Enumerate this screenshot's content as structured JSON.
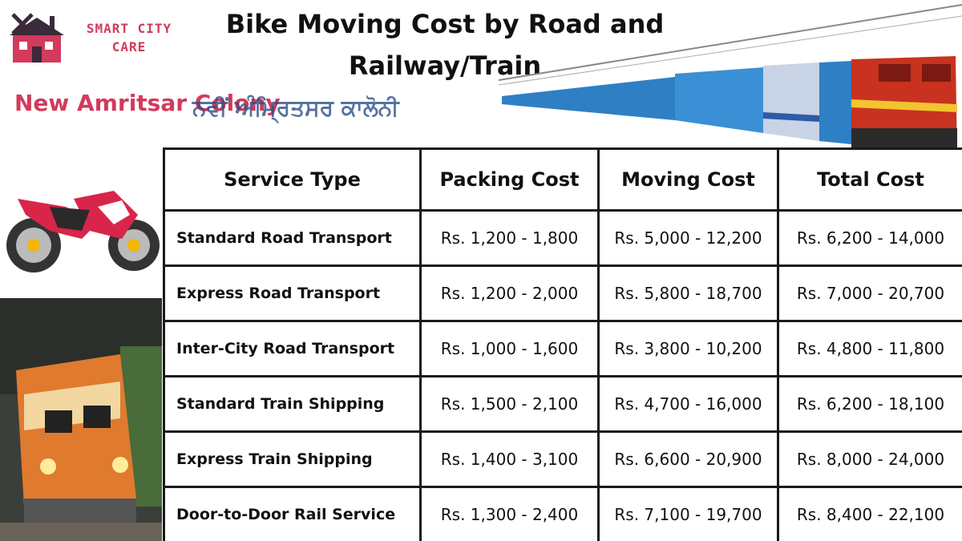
{
  "logo": {
    "line1": "SMART CITY",
    "line2": "CARE"
  },
  "title": {
    "line1": "Bike Moving Cost by Road and",
    "line2": "Railway/Train"
  },
  "location": {
    "english": "New Amritsar Colony",
    "punjabi": "ਨਵੀਂ ਅੰਮ੍ਰਿਤਸਰ ਕਾਲੋਨੀ"
  },
  "table": {
    "headers": [
      "Service Type",
      "Packing Cost",
      "Moving Cost",
      "Total Cost"
    ],
    "rows": [
      [
        "Standard Road Transport",
        "Rs. 1,200 - 1,800",
        "Rs. 5,000 - 12,200",
        "Rs. 6,200 - 14,000"
      ],
      [
        "Express Road Transport",
        "Rs. 1,200 - 2,000",
        "Rs. 5,800 - 18,700",
        "Rs. 7,000 - 20,700"
      ],
      [
        "Inter-City Road Transport",
        "Rs. 1,000 - 1,600",
        "Rs. 3,800 - 10,200",
        "Rs. 4,800 - 11,800"
      ],
      [
        "Standard Train Shipping",
        "Rs. 1,500 - 2,100",
        "Rs. 4,700 - 16,000",
        "Rs. 6,200 - 18,100"
      ],
      [
        "Express Train Shipping",
        "Rs. 1,400 - 3,100",
        "Rs. 6,600 - 20,900",
        "Rs. 8,000 - 24,000"
      ],
      [
        "Door-to-Door Rail Service",
        "Rs. 1,300 - 2,400",
        "Rs. 7,100 - 19,700",
        "Rs. 8,400 - 22,100"
      ]
    ]
  },
  "images": {
    "logo_icon": "house-tools-icon",
    "train_top": "electric-train-image",
    "bike": "sport-motorcycle-image",
    "loco": "diesel-locomotive-image"
  },
  "colors": {
    "brand": "#d33a5c",
    "punjabi_text": "#2b4f86",
    "border": "#1a1a1a"
  }
}
